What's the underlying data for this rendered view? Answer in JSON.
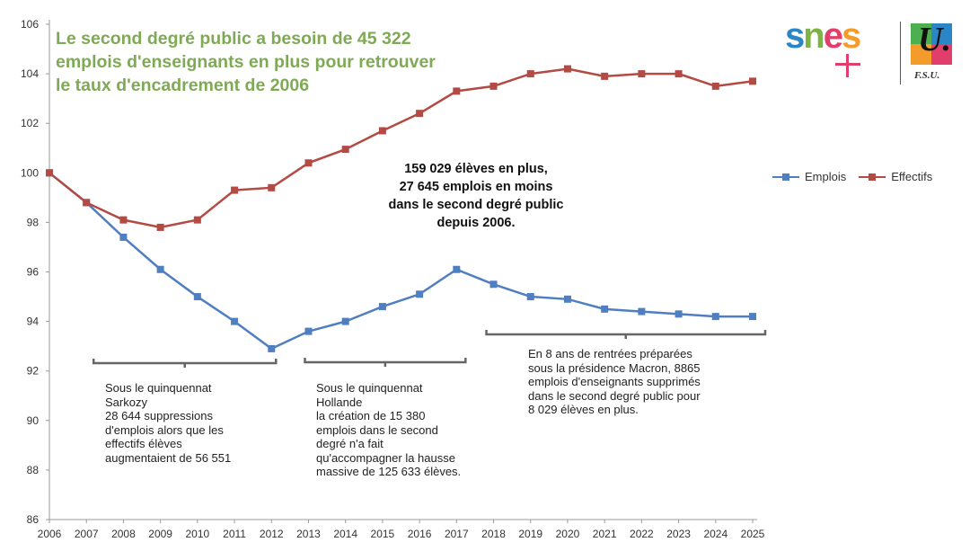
{
  "chart_data": {
    "type": "line",
    "title": "Le second degré public a besoin de 45 322 emplois d'enseignants en plus pour retrouver le taux d'encadrement de 2006",
    "x": [
      2006,
      2007,
      2008,
      2009,
      2010,
      2011,
      2012,
      2013,
      2014,
      2015,
      2016,
      2017,
      2018,
      2019,
      2020,
      2021,
      2022,
      2023,
      2024,
      2025
    ],
    "ylim": [
      86,
      106
    ],
    "yticks": [
      86,
      88,
      90,
      92,
      94,
      96,
      98,
      100,
      102,
      104,
      106
    ],
    "grid": false,
    "legend_position": "right",
    "series": [
      {
        "name": "Emplois",
        "color": "#4f7fc0",
        "values": [
          100,
          98.8,
          97.4,
          96.1,
          95.0,
          94.0,
          92.9,
          93.6,
          94.0,
          94.6,
          95.1,
          96.1,
          95.5,
          95.0,
          94.9,
          94.5,
          94.4,
          94.3,
          94.2,
          94.2
        ]
      },
      {
        "name": "Effectifs",
        "color": "#b34a44",
        "values": [
          100,
          98.8,
          98.1,
          97.8,
          98.1,
          99.3,
          99.4,
          100.4,
          100.95,
          101.7,
          102.4,
          103.3,
          103.5,
          104.0,
          104.2,
          103.9,
          104.0,
          104.0,
          103.5,
          103.7
        ]
      }
    ],
    "annotations": {
      "center": "159 029 élèves en plus,\n27 645 emplois en moins\ndans le second degré public\ndepuis 2006.",
      "sarkozy": {
        "range": [
          2007,
          2012
        ],
        "text": "Sous le quinquennat\nSarkozy\n28 644 suppressions\nd'emplois alors que les\neffectifs élèves\naugmentaient de 56 551"
      },
      "hollande": {
        "range": [
          2013,
          2017
        ],
        "text": "Sous le quinquennat\nHollande\nla création de 15 380\nemplois dans le second\ndegré n'a fait\nqu'accompagner la hausse\nmassive de 125 633 élèves."
      },
      "macron": {
        "range": [
          2018,
          2025
        ],
        "text": "En 8 ans de rentrées préparées\nsous la présidence Macron, 8865\nemplois d'enseignants supprimés\ndans le second degré public pour\n8 029 élèves en plus."
      }
    }
  },
  "logo": {
    "snes": "snes",
    "fsu_letter": "U.",
    "fsu": "F.S.U."
  }
}
